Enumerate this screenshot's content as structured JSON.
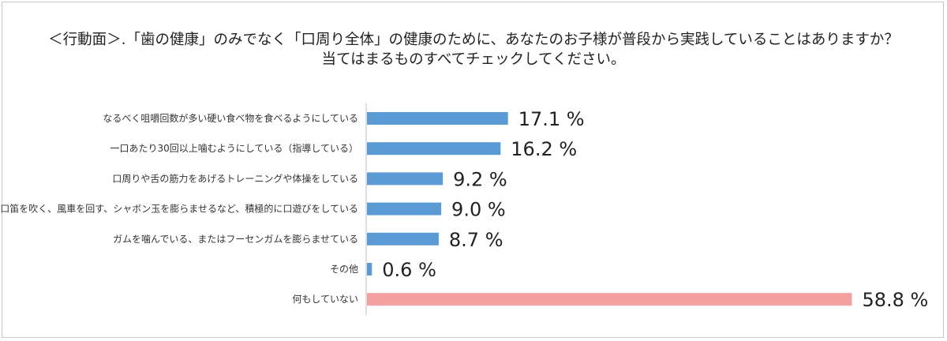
{
  "chart_data": {
    "type": "bar",
    "orientation": "horizontal",
    "title_lines": [
      "＜行動面＞.「歯の健康」のみでなく「口周り全体」の健康のために、あなたのお子様が普段から実践していることはありますか？",
      "当てはまるものすべてチェックしてください。"
    ],
    "categories": [
      "なるべく咀嚼回数が多い硬い食べ物を食べるようにしている",
      "一口あたり30回以上噛むようにしている（指導している）",
      "口周りや舌の筋力をあげるトレーニングや体操をしている",
      "口笛を吹く、風車を回す、シャボン玉を膨らませるなど、積極的に口遊びをしている",
      "ガムを噛んでいる、またはフーセンガムを膨らませている",
      "その他",
      "何もしていない"
    ],
    "values": [
      17.1,
      16.2,
      9.2,
      9.0,
      8.7,
      0.6,
      58.8
    ],
    "value_labels": [
      "17.1 %",
      "16.2 %",
      "9.2 %",
      "9.0 %",
      "8.7 %",
      "0.6 %",
      "58.8 %"
    ],
    "unit": "%",
    "xlim": [
      0,
      60
    ],
    "grid": false,
    "legend": "none",
    "bar_colors": [
      "#5b9bd5",
      "#5b9bd5",
      "#5b9bd5",
      "#5b9bd5",
      "#5b9bd5",
      "#5b9bd5",
      "#f4a0a0"
    ],
    "axis_color": "#bfbfbf"
  }
}
